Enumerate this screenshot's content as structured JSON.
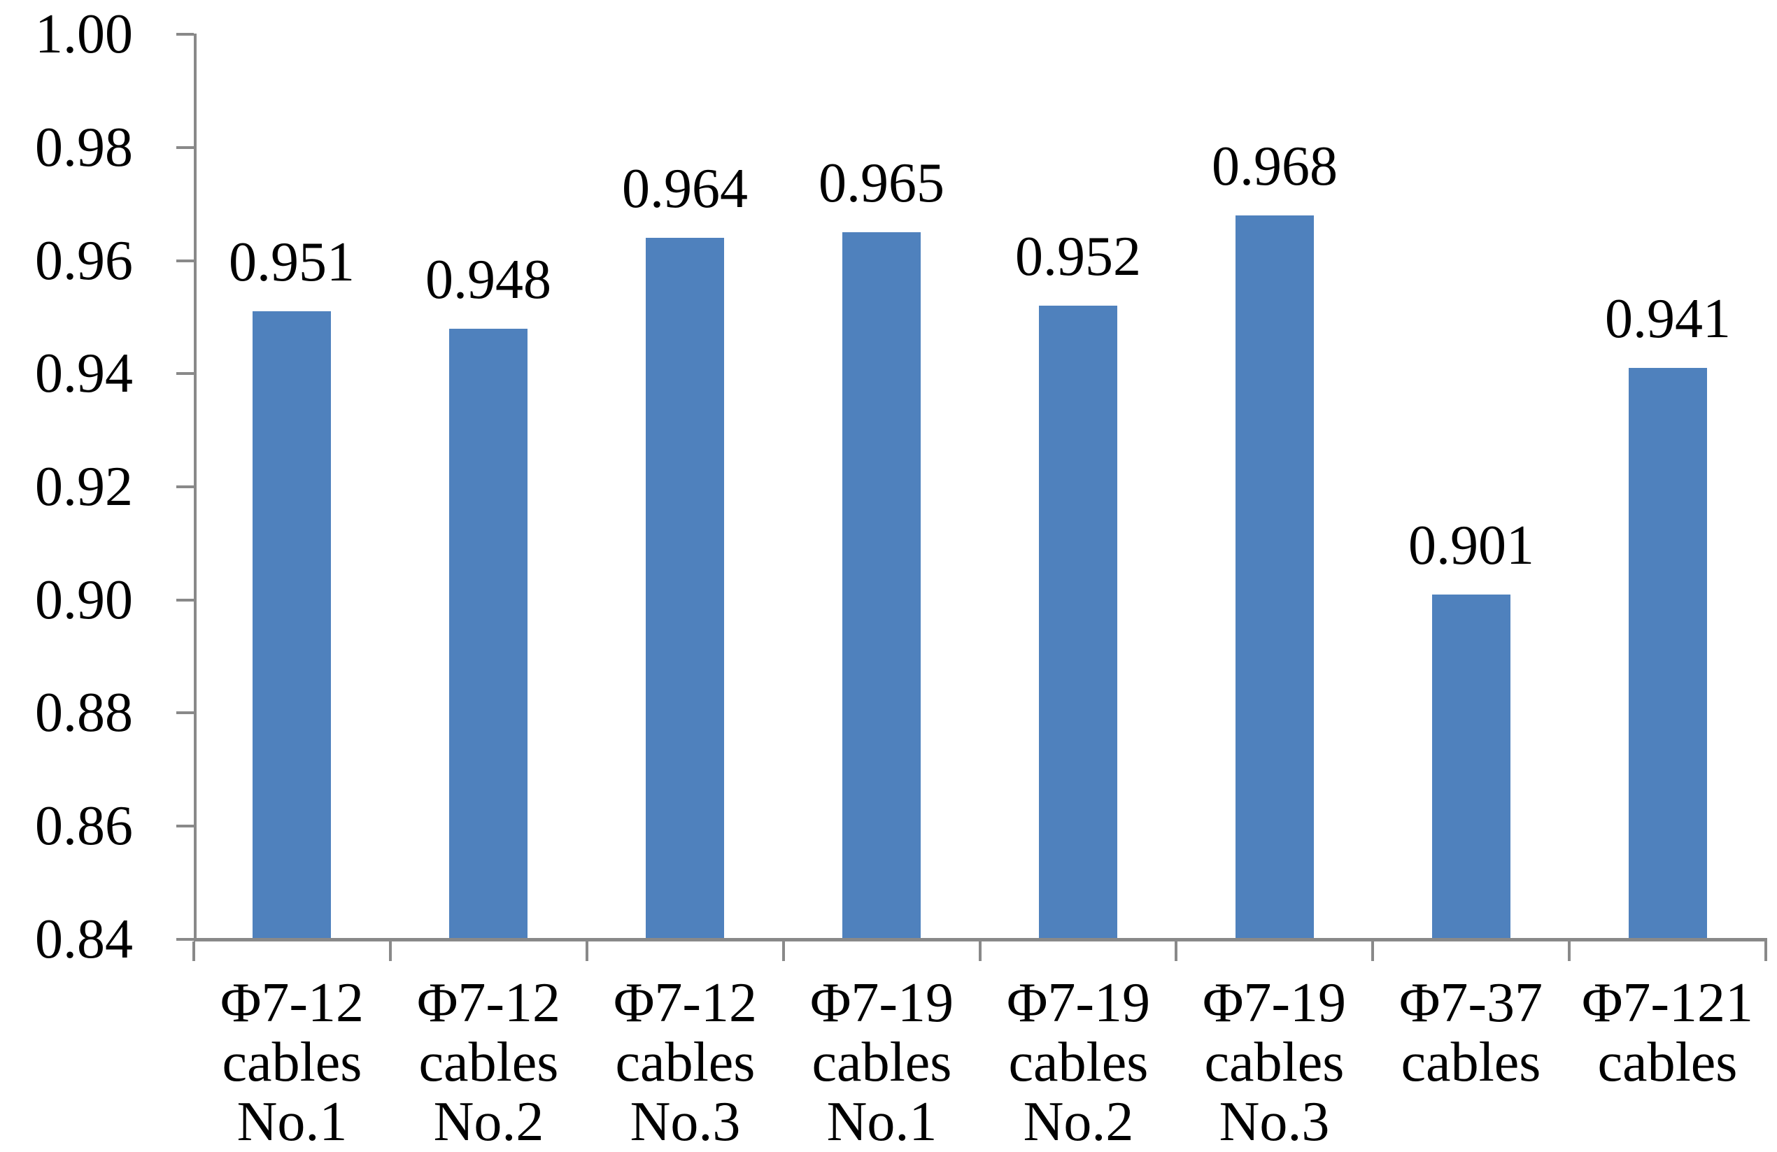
{
  "chart_data": {
    "type": "bar",
    "title": "",
    "xlabel": "",
    "ylabel": "",
    "categories": [
      "Φ7-12 cables No.1",
      "Φ7-12 cables No.2",
      "Φ7-12 cables No.3",
      "Φ7-19 cables No.1",
      "Φ7-19 cables No.2",
      "Φ7-19 cables No.3",
      "Φ7-37 cables",
      "Φ7-121 cables"
    ],
    "category_lines": [
      [
        "Φ7-12",
        "cables",
        "No.1"
      ],
      [
        "Φ7-12",
        "cables",
        "No.2"
      ],
      [
        "Φ7-12",
        "cables",
        "No.3"
      ],
      [
        "Φ7-19",
        "cables",
        "No.1"
      ],
      [
        "Φ7-19",
        "cables",
        "No.2"
      ],
      [
        "Φ7-19",
        "cables",
        "No.3"
      ],
      [
        "Φ7-37",
        "cables"
      ],
      [
        "Φ7-121",
        "cables"
      ]
    ],
    "values": [
      0.951,
      0.948,
      0.964,
      0.965,
      0.952,
      0.968,
      0.901,
      0.941
    ],
    "data_labels": [
      "0.951",
      "0.948",
      "0.964",
      "0.965",
      "0.952",
      "0.968",
      "0.901",
      "0.941"
    ],
    "ylim": [
      0.84,
      1.0
    ],
    "ytick_step": 0.02,
    "ytick_labels": [
      "1.00",
      "0.98",
      "0.96",
      "0.94",
      "0.92",
      "0.90",
      "0.88",
      "0.86",
      "0.84"
    ],
    "grid": false,
    "legend": "none",
    "bar_color": "#4F81BD",
    "axis_color": "#898989",
    "label_color": "#000000"
  }
}
